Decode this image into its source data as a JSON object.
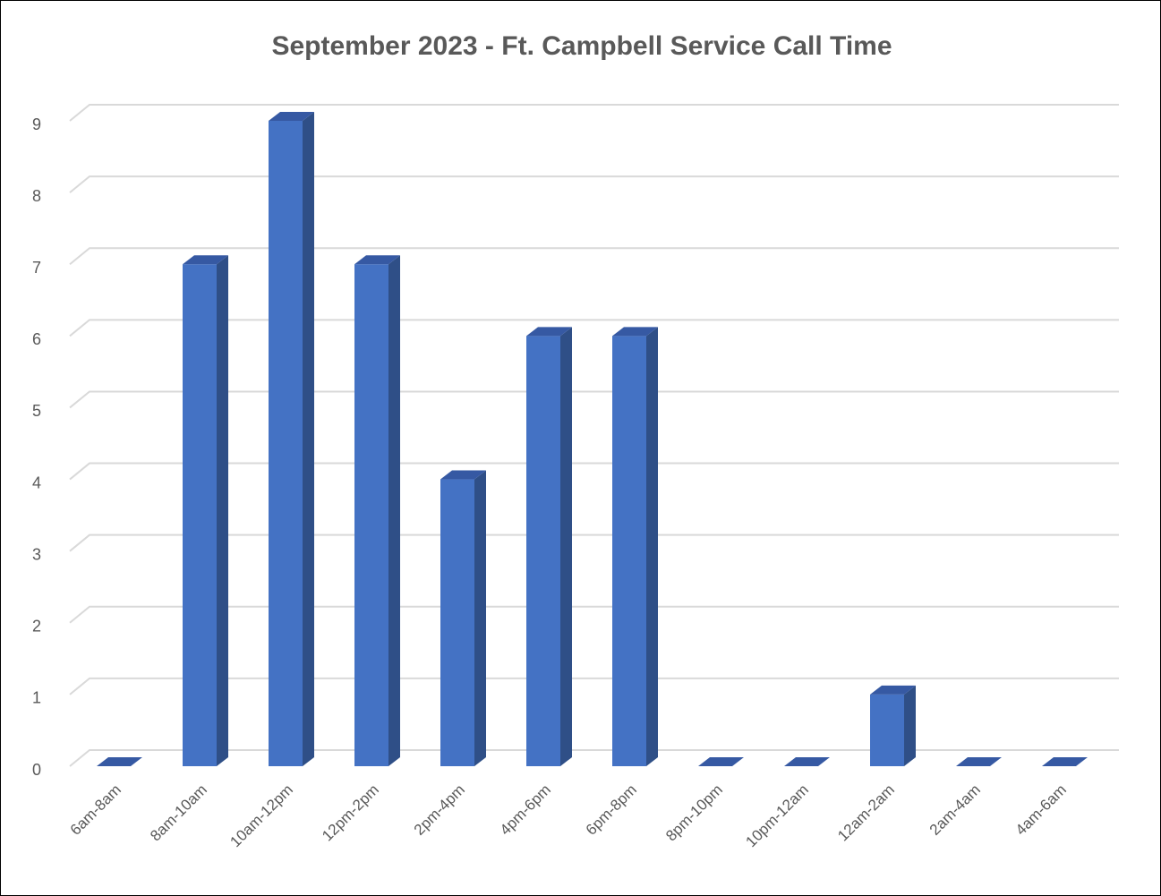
{
  "chart_data": {
    "type": "bar",
    "title": "September 2023 - Ft. Campbell Service Call Time",
    "categories": [
      "6am-8am",
      "8am-10am",
      "10am-12pm",
      "12pm-2pm",
      "2pm-4pm",
      "4pm-6pm",
      "6pm-8pm",
      "8pm-10pm",
      "10pm-12am",
      "12am-2am",
      "2am-4am",
      "4am-6am"
    ],
    "values": [
      0,
      7,
      9,
      7,
      4,
      6,
      6,
      0,
      0,
      1,
      0,
      0
    ],
    "color": "#4472c4",
    "ylim": [
      0,
      9
    ],
    "yticks": [
      0,
      1,
      2,
      3,
      4,
      5,
      6,
      7,
      8,
      9
    ],
    "grid": true
  }
}
